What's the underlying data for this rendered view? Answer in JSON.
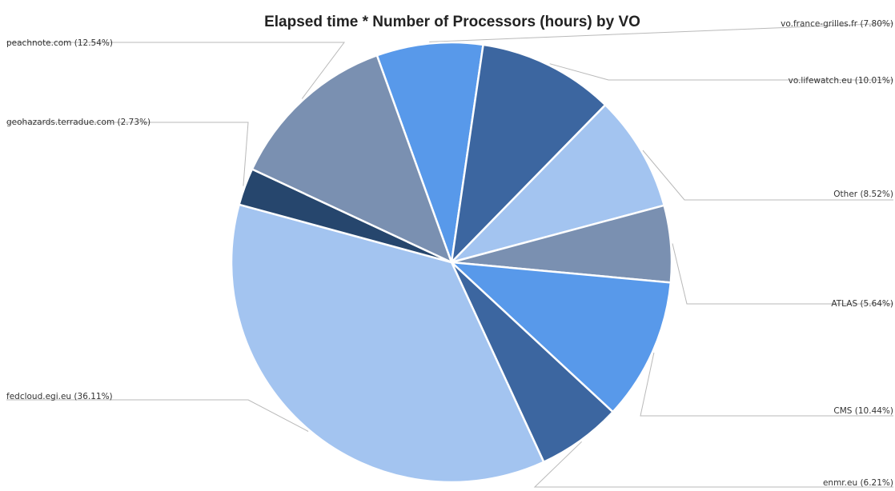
{
  "chart_data": {
    "type": "pie",
    "title": "Elapsed time * Number of Processors (hours) by VO",
    "slices": [
      {
        "label": "vo.france-grilles.fr (7.80%)",
        "value": 7.8,
        "color": "#5899ea"
      },
      {
        "label": "vo.lifewatch.eu (10.01%)",
        "value": 10.01,
        "color": "#3c66a0"
      },
      {
        "label": "Other (8.52%)",
        "value": 8.52,
        "color": "#a3c4f0"
      },
      {
        "label": "ATLAS (5.64%)",
        "value": 5.64,
        "color": "#7a90b1"
      },
      {
        "label": "CMS (10.44%)",
        "value": 10.44,
        "color": "#5899ea"
      },
      {
        "label": "enmr.eu (6.21%)",
        "value": 6.21,
        "color": "#3c66a0"
      },
      {
        "label": "fedcloud.egi.eu (36.11%)",
        "value": 36.11,
        "color": "#a3c4f0"
      },
      {
        "label": "geohazards.terradue.com (2.73%)",
        "value": 2.73,
        "color": "#26466d"
      },
      {
        "label": "peachnote.com (12.54%)",
        "value": 12.54,
        "color": "#7a90b1"
      }
    ]
  }
}
